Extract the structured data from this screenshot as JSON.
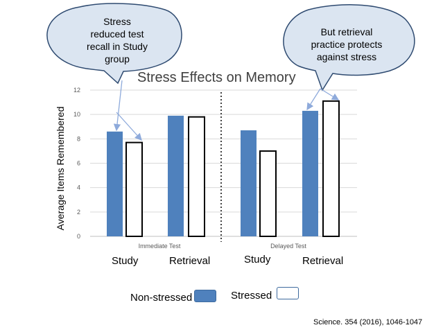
{
  "chart_data": {
    "type": "bar",
    "title": "Stress Effects on Memory",
    "ylabel": "Average Items Remembered",
    "ylim": [
      0,
      12
    ],
    "yticks": [
      0,
      2,
      4,
      6,
      8,
      10,
      12
    ],
    "groups": [
      {
        "test": "Immediate Test",
        "categories": [
          "Study",
          "Retrieval"
        ],
        "values": {
          "non_stressed": [
            8.6,
            9.9
          ],
          "stressed": [
            7.7,
            9.8
          ]
        }
      },
      {
        "test": "Delayed Test",
        "categories": [
          "Study",
          "Retrieval"
        ],
        "values": {
          "non_stressed": [
            8.7,
            10.3
          ],
          "stressed": [
            7.0,
            11.1
          ]
        }
      }
    ],
    "series": [
      {
        "name": "Non-stressed",
        "color": "#4f81bd"
      },
      {
        "name": "Stressed",
        "color": "#ffffff"
      }
    ],
    "legend": "bottom",
    "grid": true,
    "annotations": [
      {
        "lines": [
          "Stress",
          "reduced test",
          "recall in Study",
          "group"
        ]
      },
      {
        "lines": [
          "But retrieval",
          "practice protects",
          "against stress"
        ]
      }
    ],
    "source": "Science. 354 (2016), 1046-1047"
  }
}
